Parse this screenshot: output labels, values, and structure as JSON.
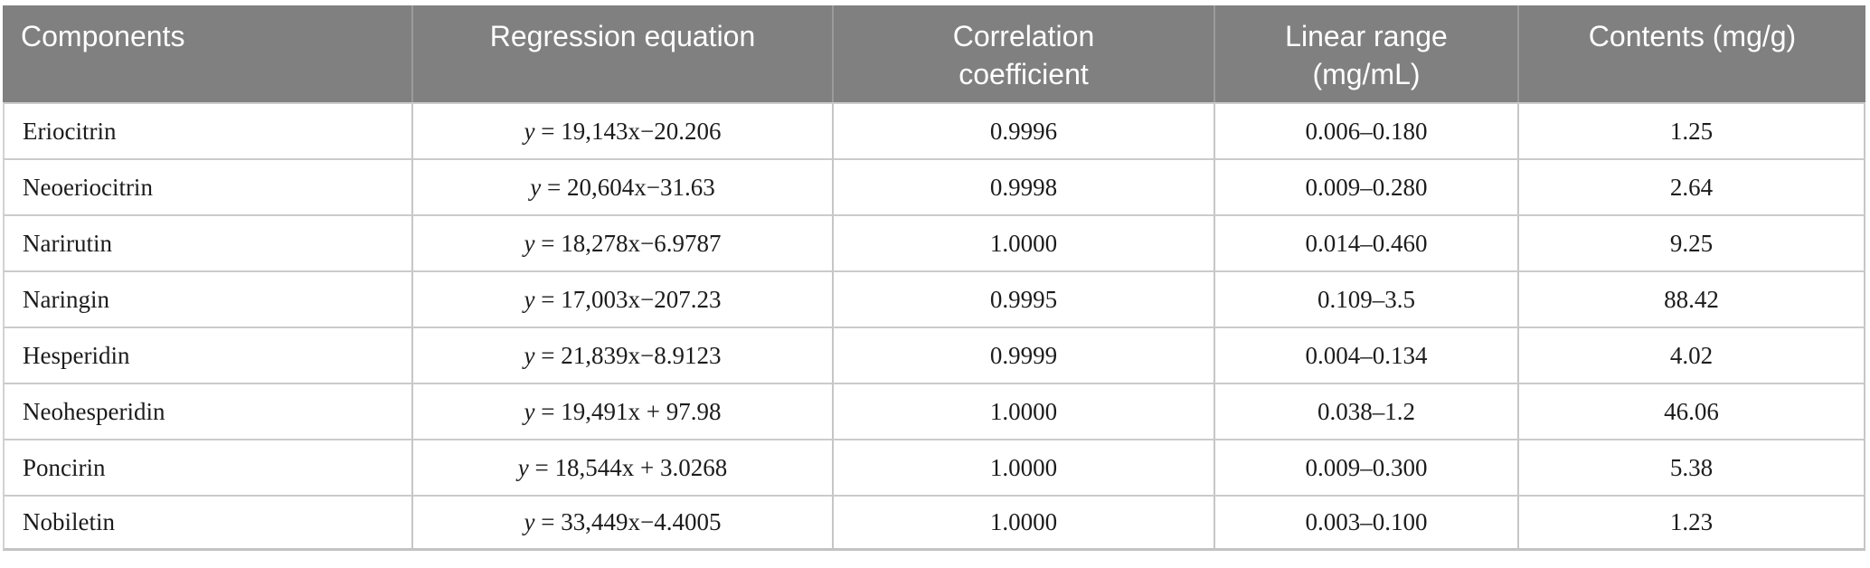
{
  "table": {
    "headers": [
      {
        "line1": "Components"
      },
      {
        "line1": "Regression equation"
      },
      {
        "line1": "Correlation",
        "line2": "coefficient"
      },
      {
        "line1": "Linear range",
        "line2": "(mg/mL)"
      },
      {
        "line1": "Contents (mg/g)"
      }
    ],
    "rows": [
      {
        "component": "Eriocitrin",
        "eq_var": "y",
        "eq_rest": " = 19,143x−20.206",
        "correlation": "0.9996",
        "linear_range": "0.006–0.180",
        "contents": "1.25"
      },
      {
        "component": "Neoeriocitrin",
        "eq_var": "y",
        "eq_rest": " = 20,604x−31.63",
        "correlation": "0.9998",
        "linear_range": "0.009–0.280",
        "contents": "2.64"
      },
      {
        "component": "Narirutin",
        "eq_var": "y",
        "eq_rest": " = 18,278x−6.9787",
        "correlation": "1.0000",
        "linear_range": "0.014–0.460",
        "contents": "9.25"
      },
      {
        "component": "Naringin",
        "eq_var": "y",
        "eq_rest": " = 17,003x−207.23",
        "correlation": "0.9995",
        "linear_range": "0.109–3.5",
        "contents": "88.42"
      },
      {
        "component": "Hesperidin",
        "eq_var": "y",
        "eq_rest": " = 21,839x−8.9123",
        "correlation": "0.9999",
        "linear_range": "0.004–0.134",
        "contents": "4.02"
      },
      {
        "component": "Neohesperidin",
        "eq_var": "y",
        "eq_rest": " = 19,491x + 97.98",
        "correlation": "1.0000",
        "linear_range": "0.038–1.2",
        "contents": "46.06"
      },
      {
        "component": "Poncirin",
        "eq_var": "y",
        "eq_rest": " = 18,544x + 3.0268",
        "correlation": "1.0000",
        "linear_range": "0.009–0.300",
        "contents": "5.38"
      },
      {
        "component": "Nobiletin",
        "eq_var": "y",
        "eq_rest": " = 33,449x−4.4005",
        "correlation": "1.0000",
        "linear_range": "0.003–0.100",
        "contents": "1.23"
      }
    ],
    "colors": {
      "header_bg": "#808080",
      "header_text": "#ffffff",
      "border": "#c6c6c6",
      "body_text": "#1c1c1c"
    }
  }
}
